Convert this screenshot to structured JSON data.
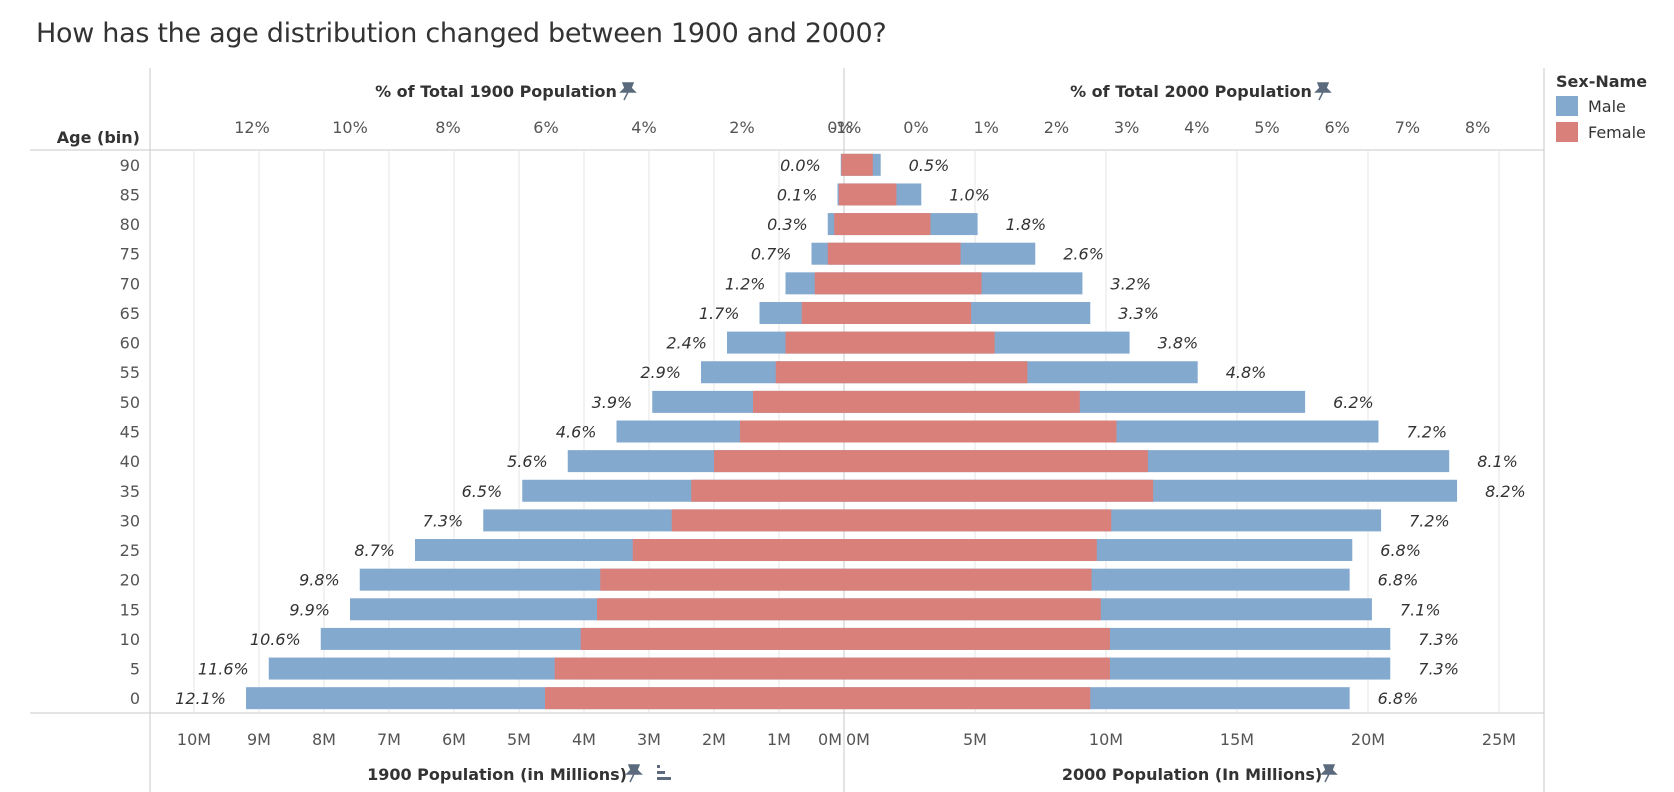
{
  "title": "How has the age distribution changed between 1900 and 2000?",
  "colors": {
    "male": "#84a9cf",
    "female": "#d9807b",
    "grid": "#e6e6e6",
    "axis": "#c8c8c8"
  },
  "legend": {
    "title": "Sex-Name",
    "items": [
      {
        "label": "Male",
        "color": "#84a9cf"
      },
      {
        "label": "Female",
        "color": "#d9807b"
      }
    ]
  },
  "icons": {
    "pin": "pin-icon",
    "sort": "sort-icon"
  },
  "chart_data": {
    "type": "bar",
    "orientation": "horizontal-population-pyramid",
    "ylabel": "Age (bin)",
    "age_bins": [
      "90",
      "85",
      "80",
      "75",
      "70",
      "65",
      "60",
      "55",
      "50",
      "45",
      "40",
      "35",
      "30",
      "25",
      "20",
      "15",
      "10",
      "5",
      "0"
    ],
    "left": {
      "top_axis_title": "% of Total 1900 Population",
      "bottom_axis_title": "1900 Population (in Millions)",
      "top_ticks": [
        "12%",
        "10%",
        "8%",
        "6%",
        "4%",
        "2%",
        "0%"
      ],
      "bottom_ticks": [
        "10M",
        "9M",
        "8M",
        "7M",
        "6M",
        "5M",
        "4M",
        "3M",
        "2M",
        "1M",
        "0M"
      ],
      "xlim": [
        0,
        10.5
      ],
      "series": [
        {
          "name": "Male",
          "values": [
            0.05,
            0.1,
            0.25,
            0.5,
            0.9,
            1.3,
            1.8,
            2.2,
            2.95,
            3.5,
            4.25,
            4.95,
            5.55,
            6.6,
            7.45,
            7.6,
            8.05,
            8.85,
            9.2
          ]
        },
        {
          "name": "Female",
          "values": [
            0.04,
            0.08,
            0.15,
            0.25,
            0.45,
            0.65,
            0.9,
            1.05,
            1.4,
            1.6,
            2.0,
            2.35,
            2.65,
            3.25,
            3.75,
            3.8,
            4.05,
            4.45,
            4.6
          ]
        }
      ],
      "pct_labels": [
        "0.0%",
        "0.1%",
        "0.3%",
        "0.7%",
        "1.2%",
        "1.7%",
        "2.4%",
        "2.9%",
        "3.9%",
        "4.6%",
        "5.6%",
        "6.5%",
        "7.3%",
        "8.7%",
        "9.8%",
        "9.9%",
        "10.6%",
        "11.6%",
        "12.1%"
      ]
    },
    "right": {
      "top_axis_title": "% of Total 2000 Population",
      "bottom_axis_title": "2000 Population (In Millions)",
      "top_ticks": [
        "-1%",
        "0%",
        "1%",
        "2%",
        "3%",
        "4%",
        "5%",
        "6%",
        "7%",
        "8%"
      ],
      "bottom_ticks": [
        "0M",
        "5M",
        "10M",
        "15M",
        "20M",
        "25M"
      ],
      "xlim": [
        0,
        26
      ],
      "series": [
        {
          "name": "Male",
          "values": [
            1.4,
            2.95,
            5.1,
            7.3,
            9.1,
            9.4,
            10.9,
            13.5,
            17.6,
            20.4,
            23.1,
            23.4,
            20.5,
            19.4,
            19.3,
            20.15,
            20.85,
            20.85,
            19.3
          ]
        },
        {
          "name": "Female",
          "values": [
            1.1,
            2.0,
            3.3,
            4.45,
            5.25,
            4.85,
            5.75,
            7.0,
            9.0,
            10.4,
            11.6,
            11.8,
            10.2,
            9.65,
            9.45,
            9.8,
            10.15,
            10.15,
            9.4
          ]
        }
      ],
      "pct_labels": [
        "0.5%",
        "1.0%",
        "1.8%",
        "2.6%",
        "3.2%",
        "3.3%",
        "3.8%",
        "4.8%",
        "6.2%",
        "7.2%",
        "8.1%",
        "8.2%",
        "7.2%",
        "6.8%",
        "6.8%",
        "7.1%",
        "7.3%",
        "7.3%",
        "6.8%"
      ]
    }
  }
}
